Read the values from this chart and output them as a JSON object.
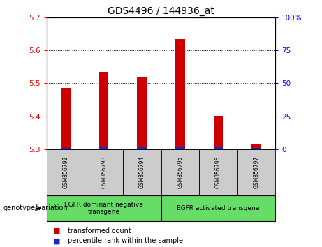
{
  "title": "GDS4496 / 144936_at",
  "samples": [
    "GSM856792",
    "GSM856793",
    "GSM856794",
    "GSM856795",
    "GSM856796",
    "GSM856797"
  ],
  "red_values": [
    5.487,
    5.535,
    5.52,
    5.635,
    5.402,
    5.318
  ],
  "blue_values": [
    5.305,
    5.308,
    5.307,
    5.308,
    5.307,
    5.305
  ],
  "ylim": [
    5.3,
    5.7
  ],
  "yticks_left": [
    5.3,
    5.4,
    5.5,
    5.6,
    5.7
  ],
  "yticks_right": [
    0,
    25,
    50,
    75,
    100
  ],
  "group1_label": "EGFR dominant negative\ntransgene",
  "group2_label": "EGFR activated transgene",
  "genotype_label": "genotype/variation",
  "legend1_label": "transformed count",
  "legend2_label": "percentile rank within the sample",
  "bar_color_red": "#cc0000",
  "bar_color_blue": "#2222cc",
  "group_bg_color": "#66dd66",
  "sample_bg_color": "#cccccc",
  "bar_width": 0.25,
  "title_fontsize": 10,
  "tick_fontsize": 7.5,
  "sample_fontsize": 5.5,
  "group_fontsize": 6.5,
  "legend_fontsize": 7,
  "genotype_fontsize": 7
}
